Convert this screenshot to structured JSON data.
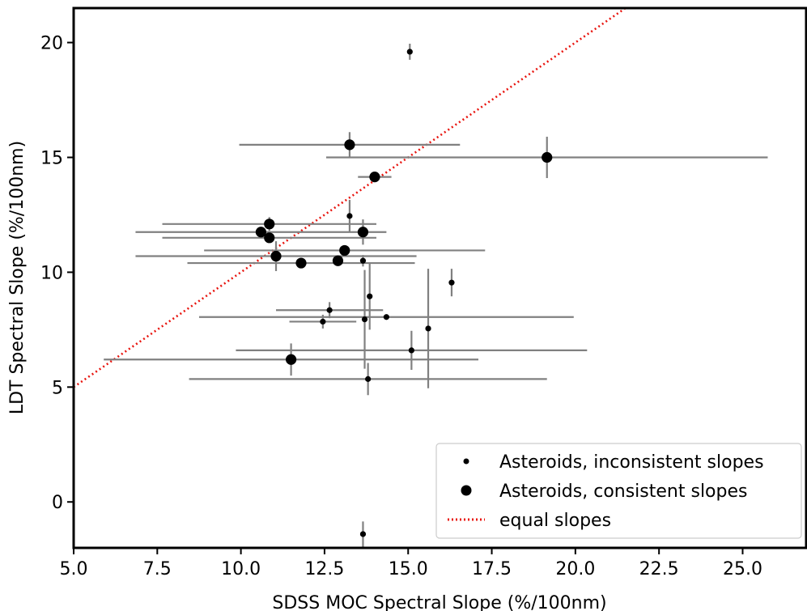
{
  "chart_data": {
    "type": "scatter",
    "title": "",
    "xlabel": "SDSS MOC Spectral Slope (%/100nm)",
    "ylabel": "LDT Spectral Slope (%/100nm)",
    "xlim": [
      5.0,
      26.9
    ],
    "ylim": [
      -2.0,
      21.5
    ],
    "x_ticks": [
      5.0,
      7.5,
      10.0,
      12.5,
      15.0,
      17.5,
      20.0,
      22.5,
      25.0
    ],
    "x_tick_labels": [
      "5.0",
      "7.5",
      "10.0",
      "12.5",
      "15.0",
      "17.5",
      "20.0",
      "22.5",
      "25.0"
    ],
    "y_ticks": [
      0,
      5,
      10,
      15,
      20
    ],
    "y_tick_labels": [
      "0",
      "5",
      "10",
      "15",
      "20"
    ],
    "grid": false,
    "legend_position": "lower-right",
    "colors": {
      "points": "#000000",
      "errorbars": "#808080",
      "equal_line": "#e8140e"
    },
    "legend": [
      {
        "label": "Asteroids, inconsistent slopes",
        "marker": "small-dot"
      },
      {
        "label": "Asteroids, consistent slopes",
        "marker": "large-dot"
      },
      {
        "label": "equal slopes",
        "marker": "dotted-line"
      }
    ],
    "series": [
      {
        "name": "Asteroids, inconsistent slopes",
        "points": [
          {
            "x": 15.05,
            "y": 19.6,
            "xerr": 0.0,
            "yerr": 0.35
          },
          {
            "x": 13.25,
            "y": 12.45,
            "xerr": 0.0,
            "yerr": 0.7
          },
          {
            "x": 16.3,
            "y": 9.55,
            "xerr": 0.0,
            "yerr": 0.6
          },
          {
            "x": 13.65,
            "y": 10.5,
            "xerr": 0.0,
            "yerr": 0.25
          },
          {
            "x": 13.85,
            "y": 8.95,
            "xerr": 0.0,
            "yerr": 1.45
          },
          {
            "x": 12.65,
            "y": 8.35,
            "xerr": 1.6,
            "yerr": 0.35
          },
          {
            "x": 14.35,
            "y": 8.05,
            "xerr": 5.6,
            "yerr": 0.0
          },
          {
            "x": 13.7,
            "y": 7.95,
            "xerr": 0.0,
            "yerr": 2.15
          },
          {
            "x": 12.45,
            "y": 7.85,
            "xerr": 1.0,
            "yerr": 0.3
          },
          {
            "x": 15.6,
            "y": 7.55,
            "xerr": 0.0,
            "yerr": 2.6
          },
          {
            "x": 15.1,
            "y": 6.6,
            "xerr": 5.25,
            "yerr": 0.85
          },
          {
            "x": 13.8,
            "y": 5.35,
            "xerr": 5.35,
            "yerr": 0.7
          },
          {
            "x": 13.65,
            "y": -1.4,
            "xerr": 0.0,
            "yerr": 0.55
          }
        ]
      },
      {
        "name": "Asteroids, consistent slopes",
        "points": [
          {
            "x": 13.25,
            "y": 15.55,
            "xerr": 3.3,
            "yerr": 0.55
          },
          {
            "x": 19.15,
            "y": 15.0,
            "xerr": 6.6,
            "yerr": 0.9
          },
          {
            "x": 14.0,
            "y": 14.15,
            "xerr": 0.5,
            "yerr": 0.0
          },
          {
            "x": 10.85,
            "y": 12.1,
            "xerr": 3.2,
            "yerr": 0.3
          },
          {
            "x": 10.6,
            "y": 11.75,
            "xerr": 3.75,
            "yerr": 0.0
          },
          {
            "x": 13.65,
            "y": 11.75,
            "xerr": 0.0,
            "yerr": 0.55
          },
          {
            "x": 10.85,
            "y": 11.5,
            "xerr": 3.2,
            "yerr": 0.0
          },
          {
            "x": 13.1,
            "y": 10.95,
            "xerr": 4.2,
            "yerr": 0.0
          },
          {
            "x": 11.05,
            "y": 10.7,
            "xerr": 4.2,
            "yerr": 0.65
          },
          {
            "x": 11.8,
            "y": 10.4,
            "xerr": 3.4,
            "yerr": 0.0
          },
          {
            "x": 12.9,
            "y": 10.5,
            "xerr": 0.0,
            "yerr": 0.0
          },
          {
            "x": 11.5,
            "y": 6.2,
            "xerr": 5.6,
            "yerr": 0.7
          }
        ]
      }
    ],
    "reference_lines": [
      {
        "name": "equal slopes",
        "points": [
          [
            5.0,
            5.0
          ],
          [
            26.9,
            26.9
          ]
        ]
      }
    ]
  }
}
